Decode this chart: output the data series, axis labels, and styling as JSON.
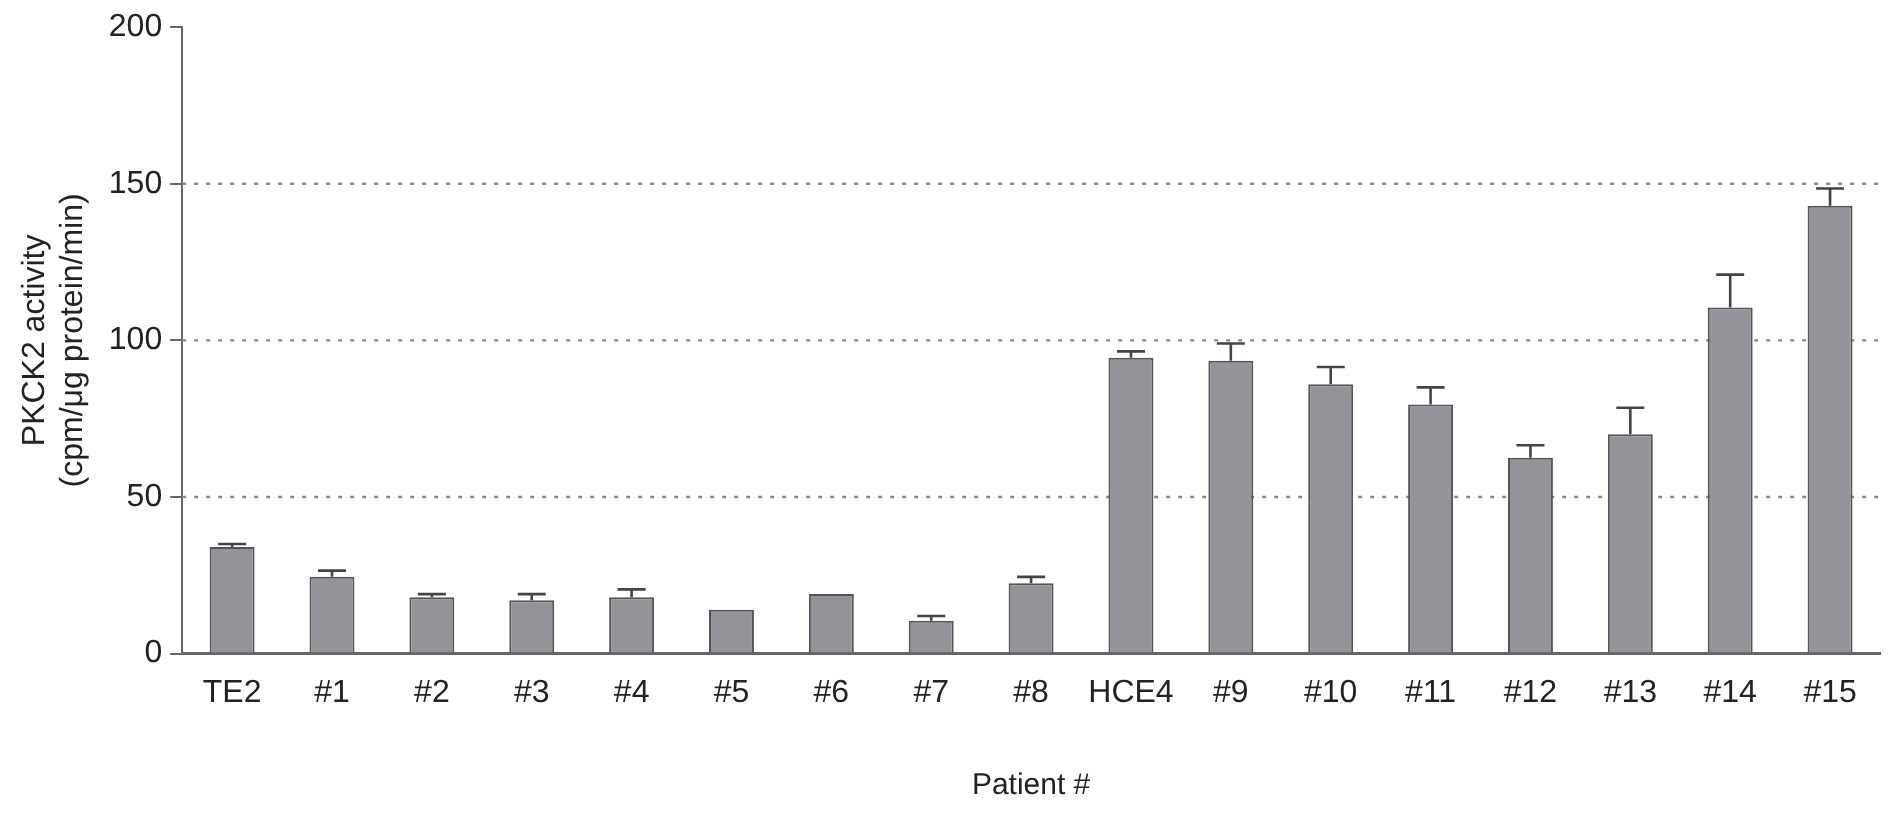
{
  "chart_data": {
    "type": "bar",
    "xlabel": "Patient #",
    "ylabel": "PKCK2 activity\n(cpm/μg protein/min)",
    "categories": [
      "TE2",
      "#1",
      "#2",
      "#3",
      "#4",
      "#5",
      "#6",
      "#7",
      "#8",
      "HCE4",
      "#9",
      "#10",
      "#11",
      "#12",
      "#13",
      "#14",
      "#15"
    ],
    "values": [
      34,
      24.5,
      18,
      17,
      18,
      14,
      19,
      10.5,
      22.5,
      94.5,
      93.5,
      86,
      79.5,
      62.5,
      70,
      110.5,
      143
    ],
    "errors": [
      [
        34,
        35
      ],
      [
        24.5,
        26.5
      ],
      [
        18,
        19
      ],
      [
        17,
        19
      ],
      [
        18,
        20.5
      ],
      null,
      null,
      [
        10.5,
        12
      ],
      [
        22.5,
        24.5
      ],
      [
        94.5,
        96.5
      ],
      [
        93.5,
        99
      ],
      [
        86,
        91.5
      ],
      [
        79.5,
        85
      ],
      [
        62.5,
        66.5
      ],
      [
        70,
        78.5
      ],
      [
        110.5,
        121
      ],
      [
        143,
        148.5
      ]
    ],
    "color": "#919498",
    "ylim": [
      0,
      200
    ],
    "yticks": [
      0,
      50,
      100,
      150,
      200
    ],
    "grid": "y"
  }
}
